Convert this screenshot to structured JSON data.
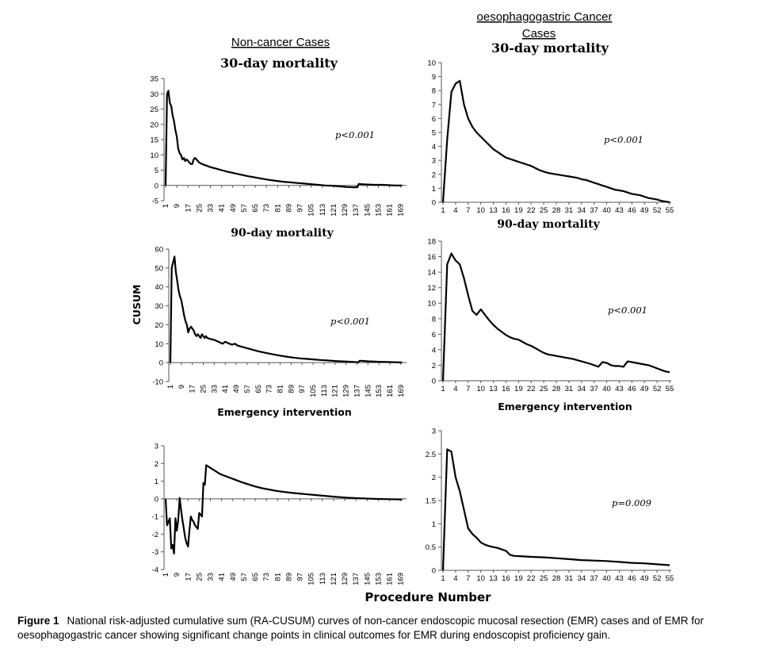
{
  "headers": {
    "left": "Non-cancer Cases",
    "right_line1": "oesophagogastric Cancer",
    "right_line2": "Cases"
  },
  "panel_titles": {
    "top_left": "30-day mortality",
    "top_right": "30-day mortality",
    "mid_left": "90-day mortality",
    "mid_right": "90-day mortality",
    "bottom_left": "Emergency intervention",
    "bottom_right": "Emergency intervention"
  },
  "y_axis_label": "CUSUM",
  "x_axis_label": "Procedure Number",
  "caption": {
    "figure_label": "Figure 1",
    "line1": "National risk-adjusted cumulative sum (RA-CUSUM) curves of non-cancer endoscopic mucosal resection (EMR) cases and of EMR for",
    "line2": "oesophagogastric cancer showing significant change points in clinical outcomes for EMR during endoscopist proficiency gain."
  },
  "chart_data": [
    {
      "id": "noncancer-30d",
      "type": "line",
      "title": "30-day mortality",
      "p_value": "p<0.001",
      "ylim": [
        -5,
        35
      ],
      "yticks": [
        -5,
        0,
        5,
        10,
        15,
        20,
        25,
        30,
        35
      ],
      "xlim": [
        1,
        172
      ],
      "xticks": [
        1,
        9,
        17,
        25,
        33,
        41,
        49,
        57,
        65,
        73,
        81,
        89,
        97,
        105,
        113,
        121,
        129,
        137,
        145,
        153,
        161,
        169
      ],
      "series": [
        {
          "x": [
            1,
            2,
            3,
            4,
            5,
            6,
            7,
            8,
            9,
            10,
            11,
            12,
            13,
            14,
            15,
            16,
            17,
            18,
            19,
            20,
            21,
            22,
            23,
            24,
            25,
            27,
            30,
            33,
            37,
            41,
            45,
            50,
            55,
            60,
            65,
            70,
            75,
            80,
            85,
            90,
            95,
            100,
            105,
            110,
            115,
            120,
            125,
            130,
            135,
            138,
            139,
            141,
            145,
            150,
            155,
            160,
            165,
            170
          ],
          "y": [
            0,
            30,
            31,
            27,
            26,
            23,
            21,
            18,
            16,
            12,
            10.5,
            10,
            8.5,
            9,
            8,
            8.5,
            8,
            7.5,
            7,
            7,
            8.5,
            9,
            8.5,
            8,
            7.5,
            7,
            6.5,
            6,
            5.5,
            5,
            4.5,
            4,
            3.5,
            3,
            2.6,
            2.2,
            1.8,
            1.5,
            1.2,
            1,
            0.8,
            0.6,
            0.4,
            0.2,
            0,
            -0.1,
            -0.3,
            -0.5,
            -0.6,
            -0.6,
            0.5,
            0.4,
            0.3,
            0.2,
            0.2,
            0.1,
            0,
            0
          ]
        }
      ]
    },
    {
      "id": "cancer-30d",
      "type": "line",
      "title": "30-day mortality",
      "p_value": "p<0.001",
      "ylim": [
        0,
        10
      ],
      "yticks": [
        0,
        1,
        2,
        3,
        4,
        5,
        6,
        7,
        8,
        9,
        10
      ],
      "xlim": [
        1,
        55
      ],
      "xticks": [
        1,
        4,
        7,
        10,
        13,
        16,
        19,
        22,
        25,
        28,
        31,
        34,
        37,
        40,
        43,
        46,
        49,
        52,
        55
      ],
      "series": [
        {
          "x": [
            1,
            2,
            3,
            4,
            5,
            6,
            7,
            8,
            9,
            10,
            11,
            12,
            13,
            14,
            15,
            16,
            17,
            18,
            19,
            20,
            21,
            22,
            23,
            24,
            25,
            26,
            27,
            28,
            29,
            30,
            31,
            32,
            33,
            34,
            35,
            36,
            37,
            38,
            39,
            40,
            41,
            42,
            43,
            44,
            45,
            46,
            47,
            48,
            49,
            50,
            51,
            52,
            53,
            54,
            55
          ],
          "y": [
            0,
            4.5,
            7.9,
            8.5,
            8.7,
            7.0,
            6.0,
            5.4,
            5.0,
            4.7,
            4.4,
            4.1,
            3.8,
            3.6,
            3.4,
            3.2,
            3.1,
            3.0,
            2.9,
            2.8,
            2.7,
            2.6,
            2.45,
            2.3,
            2.2,
            2.1,
            2.05,
            2.0,
            1.95,
            1.9,
            1.85,
            1.8,
            1.75,
            1.65,
            1.6,
            1.5,
            1.4,
            1.3,
            1.2,
            1.1,
            1.0,
            0.9,
            0.85,
            0.8,
            0.7,
            0.6,
            0.55,
            0.5,
            0.4,
            0.3,
            0.25,
            0.2,
            0.1,
            0.05,
            0
          ]
        }
      ]
    },
    {
      "id": "noncancer-90d",
      "type": "line",
      "title": "90-day mortality",
      "p_value": "p<0.001",
      "ylim": [
        -10,
        60
      ],
      "yticks": [
        -10,
        0,
        10,
        20,
        30,
        40,
        50,
        60
      ],
      "xlim": [
        1,
        172
      ],
      "xticks": [
        1,
        9,
        17,
        25,
        33,
        41,
        49,
        57,
        65,
        73,
        81,
        89,
        97,
        105,
        113,
        121,
        129,
        137,
        145,
        153,
        161,
        169
      ],
      "series": [
        {
          "x": [
            1,
            2,
            3,
            4,
            5,
            6,
            7,
            8,
            9,
            10,
            11,
            12,
            13,
            14,
            15,
            16,
            17,
            18,
            19,
            20,
            21,
            22,
            23,
            24,
            25,
            26,
            27,
            28,
            30,
            33,
            36,
            39,
            41,
            44,
            46,
            48,
            50,
            55,
            60,
            65,
            70,
            75,
            80,
            85,
            90,
            95,
            100,
            105,
            110,
            115,
            120,
            125,
            130,
            135,
            138,
            139,
            141,
            145,
            150,
            155,
            160,
            165,
            170
          ],
          "y": [
            0,
            50,
            53,
            56,
            48,
            43,
            38,
            35,
            33,
            29,
            25,
            22,
            20,
            16,
            18,
            19,
            18,
            17,
            15,
            14,
            15,
            14,
            13,
            15,
            14,
            13,
            14,
            13,
            12.5,
            12,
            11,
            10,
            11,
            10,
            9.5,
            10,
            9,
            8,
            7,
            6,
            5.2,
            4.5,
            3.8,
            3.2,
            2.7,
            2.3,
            2,
            1.7,
            1.4,
            1.2,
            0.9,
            0.7,
            0.5,
            0.3,
            0.2,
            1,
            0.9,
            0.7,
            0.5,
            0.4,
            0.3,
            0.2,
            0.1
          ]
        }
      ]
    },
    {
      "id": "cancer-90d",
      "type": "line",
      "title": "90-day mortality",
      "p_value": "p<0.001",
      "ylim": [
        0,
        18
      ],
      "yticks": [
        0,
        2,
        4,
        6,
        8,
        10,
        12,
        14,
        16,
        18
      ],
      "xlim": [
        1,
        55
      ],
      "xticks": [
        1,
        4,
        7,
        10,
        13,
        16,
        19,
        22,
        25,
        28,
        31,
        34,
        37,
        40,
        43,
        46,
        49,
        52,
        55
      ],
      "series": [
        {
          "x": [
            1,
            2,
            3,
            4,
            5,
            6,
            7,
            8,
            9,
            10,
            11,
            12,
            13,
            14,
            15,
            16,
            17,
            18,
            19,
            20,
            21,
            22,
            23,
            24,
            25,
            26,
            28,
            30,
            32,
            34,
            36,
            38,
            39,
            40,
            41,
            42,
            43,
            44,
            45,
            46,
            48,
            50,
            52,
            54,
            55
          ],
          "y": [
            0,
            15,
            16.4,
            15.5,
            15,
            13.2,
            11,
            9,
            8.5,
            9.2,
            8.5,
            7.8,
            7.2,
            6.7,
            6.3,
            5.9,
            5.6,
            5.4,
            5.3,
            5.0,
            4.7,
            4.5,
            4.2,
            3.9,
            3.6,
            3.4,
            3.2,
            3.0,
            2.8,
            2.5,
            2.2,
            1.8,
            2.4,
            2.3,
            2.0,
            1.9,
            1.9,
            1.8,
            2.5,
            2.4,
            2.2,
            2.0,
            1.6,
            1.2,
            1.1
          ]
        }
      ]
    },
    {
      "id": "noncancer-emergency",
      "type": "line",
      "title": "Emergency intervention",
      "p_value": "",
      "ylim": [
        -4,
        3
      ],
      "yticks": [
        -4,
        -3,
        -2,
        -1,
        0,
        1,
        2,
        3
      ],
      "xlim": [
        1,
        172
      ],
      "xticks": [
        1,
        9,
        17,
        25,
        33,
        41,
        49,
        57,
        65,
        73,
        81,
        89,
        97,
        105,
        113,
        121,
        129,
        137,
        145,
        153,
        161,
        169
      ],
      "series": [
        {
          "x": [
            1,
            2,
            3,
            4,
            5,
            6,
            7,
            8,
            9,
            10,
            11,
            12,
            13,
            14,
            15,
            16,
            17,
            18,
            19,
            20,
            21,
            22,
            23,
            24,
            25,
            26,
            27,
            28,
            29,
            30,
            31,
            32,
            33,
            34,
            35,
            36,
            37,
            38,
            40,
            45,
            50,
            55,
            60,
            65,
            70,
            80,
            90,
            100,
            110,
            120,
            130,
            140,
            150,
            160,
            170
          ],
          "y": [
            0,
            -1.5,
            -1.3,
            -1.1,
            -2.8,
            -2.6,
            -3.1,
            -1.1,
            -1.8,
            -1.2,
            0.05,
            -0.6,
            -1.2,
            -1.7,
            -2.2,
            -2.5,
            -2.7,
            -1.8,
            -1.0,
            -1.2,
            -1.3,
            -1.5,
            -1.6,
            -1.7,
            -0.8,
            -0.9,
            -1.0,
            0.9,
            0.8,
            1.9,
            1.85,
            1.8,
            1.75,
            1.7,
            1.65,
            1.6,
            1.55,
            1.5,
            1.4,
            1.25,
            1.1,
            0.95,
            0.82,
            0.7,
            0.6,
            0.45,
            0.35,
            0.27,
            0.2,
            0.13,
            0.07,
            0.03,
            0,
            -0.02,
            -0.04
          ]
        }
      ]
    },
    {
      "id": "cancer-emergency",
      "type": "line",
      "title": "Emergency intervention",
      "p_value": "p=0.009",
      "ylim": [
        0,
        3
      ],
      "yticks": [
        0,
        0.5,
        1,
        1.5,
        2,
        2.5,
        3
      ],
      "xlim": [
        1,
        55
      ],
      "xticks": [
        1,
        4,
        7,
        10,
        13,
        16,
        19,
        22,
        25,
        28,
        31,
        34,
        37,
        40,
        43,
        46,
        49,
        52,
        55
      ],
      "series": [
        {
          "x": [
            1,
            2,
            3,
            4,
            5,
            6,
            7,
            8,
            9,
            10,
            11,
            12,
            13,
            14,
            15,
            16,
            17,
            18,
            20,
            22,
            25,
            28,
            31,
            34,
            37,
            40,
            43,
            46,
            49,
            52,
            55
          ],
          "y": [
            0,
            2.6,
            2.55,
            2.0,
            1.7,
            1.3,
            0.9,
            0.78,
            0.7,
            0.6,
            0.55,
            0.52,
            0.5,
            0.48,
            0.45,
            0.42,
            0.33,
            0.31,
            0.3,
            0.29,
            0.28,
            0.26,
            0.24,
            0.22,
            0.21,
            0.2,
            0.18,
            0.16,
            0.15,
            0.13,
            0.11
          ]
        }
      ]
    }
  ]
}
